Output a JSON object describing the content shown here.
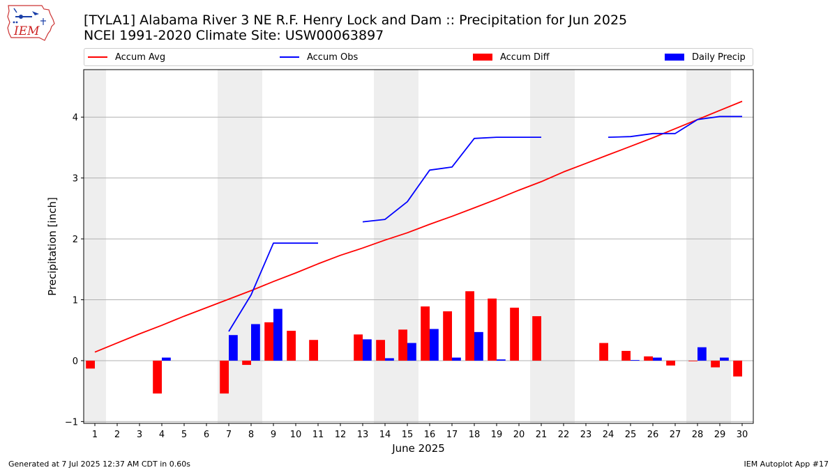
{
  "header": {
    "title_line1": "[TYLA1] Alabama River 3 NE R.F. Henry Lock and Dam :: Precipitation for Jun 2025",
    "title_line2": "NCEI 1991-2020 Climate Site: USW00063897",
    "logo_text": "IEM"
  },
  "footer": {
    "left": "Generated at 7 Jul 2025 12:37 AM CDT in 0.60s",
    "right": "IEM Autoplot App #17"
  },
  "chart_data": {
    "type": "bar",
    "title": "[TYLA1] Alabama River 3 NE R.F. Henry Lock and Dam :: Precipitation for Jun 2025",
    "subtitle": "NCEI 1991-2020 Climate Site: USW00063897",
    "xlabel": "June 2025",
    "ylabel": "Precipitation [inch]",
    "xlim": [
      0.5,
      30.5
    ],
    "ylim": [
      -1.03,
      4.78
    ],
    "yticks": [
      -1,
      0,
      1,
      2,
      3,
      4
    ],
    "ytick_labels": [
      "−1",
      "0",
      "1",
      "2",
      "3",
      "4"
    ],
    "x": [
      1,
      2,
      3,
      4,
      5,
      6,
      7,
      8,
      9,
      10,
      11,
      12,
      13,
      14,
      15,
      16,
      17,
      18,
      19,
      20,
      21,
      22,
      23,
      24,
      25,
      26,
      27,
      28,
      29,
      30
    ],
    "grid": "horizontal",
    "legend_placement": "top",
    "weekend_shading": [
      [
        0.5,
        1.5
      ],
      [
        6.5,
        8.5
      ],
      [
        13.5,
        15.5
      ],
      [
        20.5,
        22.5
      ],
      [
        27.5,
        29.5
      ]
    ],
    "series": [
      {
        "name": "Accum Avg",
        "kind": "line",
        "color": "#ff0000",
        "values": [
          0.14,
          0.29,
          0.44,
          0.58,
          0.73,
          0.87,
          1.01,
          1.15,
          1.3,
          1.44,
          1.59,
          1.73,
          1.85,
          1.98,
          2.1,
          2.24,
          2.37,
          2.51,
          2.65,
          2.8,
          2.94,
          3.1,
          3.24,
          3.38,
          3.52,
          3.66,
          3.81,
          3.96,
          4.11,
          4.26
        ]
      },
      {
        "name": "Accum Obs",
        "kind": "line",
        "color": "#0000ff",
        "values": [
          null,
          null,
          null,
          null,
          null,
          null,
          0.48,
          1.08,
          1.93,
          1.93,
          1.93,
          null,
          2.28,
          2.32,
          2.61,
          3.13,
          3.18,
          3.65,
          3.67,
          3.67,
          3.67,
          null,
          null,
          3.67,
          3.68,
          3.73,
          3.73,
          3.96,
          4.01,
          4.01
        ]
      },
      {
        "name": "Accum Diff",
        "kind": "bar",
        "color": "#ff0000",
        "values": [
          -0.13,
          null,
          null,
          -0.54,
          null,
          null,
          -0.54,
          -0.07,
          0.63,
          0.49,
          0.34,
          null,
          0.43,
          0.34,
          0.51,
          0.89,
          0.81,
          1.14,
          1.02,
          0.87,
          0.73,
          null,
          null,
          0.29,
          0.16,
          0.07,
          -0.08,
          -0.01,
          -0.11,
          -0.26
        ]
      },
      {
        "name": "Daily Precip",
        "kind": "bar",
        "color": "#0000ff",
        "values": [
          null,
          null,
          null,
          0.05,
          null,
          null,
          0.42,
          0.6,
          0.85,
          null,
          null,
          null,
          0.35,
          0.04,
          0.29,
          0.52,
          0.05,
          0.47,
          0.02,
          null,
          null,
          null,
          null,
          null,
          0.01,
          0.05,
          null,
          0.22,
          0.05,
          null
        ]
      }
    ]
  }
}
